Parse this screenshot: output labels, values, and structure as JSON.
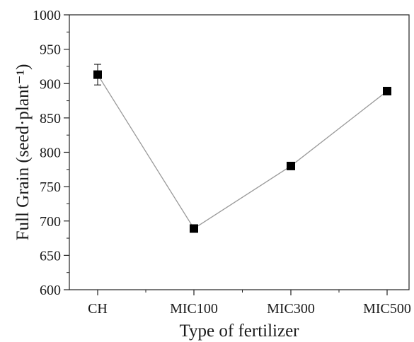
{
  "chart_data": {
    "type": "line",
    "categories": [
      "CH",
      "MIC100",
      "MIC300",
      "MIC500"
    ],
    "series": [
      {
        "values": [
          913,
          689,
          780,
          889
        ],
        "error": [
          15,
          0,
          0,
          0
        ]
      }
    ],
    "xlabel": "Type of fertilizer",
    "ylabel": "Full Grain (seed·plant⁻¹)",
    "ylim": [
      600,
      1000
    ],
    "yticks": [
      600,
      650,
      700,
      750,
      800,
      850,
      900,
      950,
      1000
    ],
    "grid": false,
    "marker": "square",
    "colors": {
      "marker": "#000000",
      "line": "#9a9a9a",
      "axis": "#222222"
    }
  }
}
